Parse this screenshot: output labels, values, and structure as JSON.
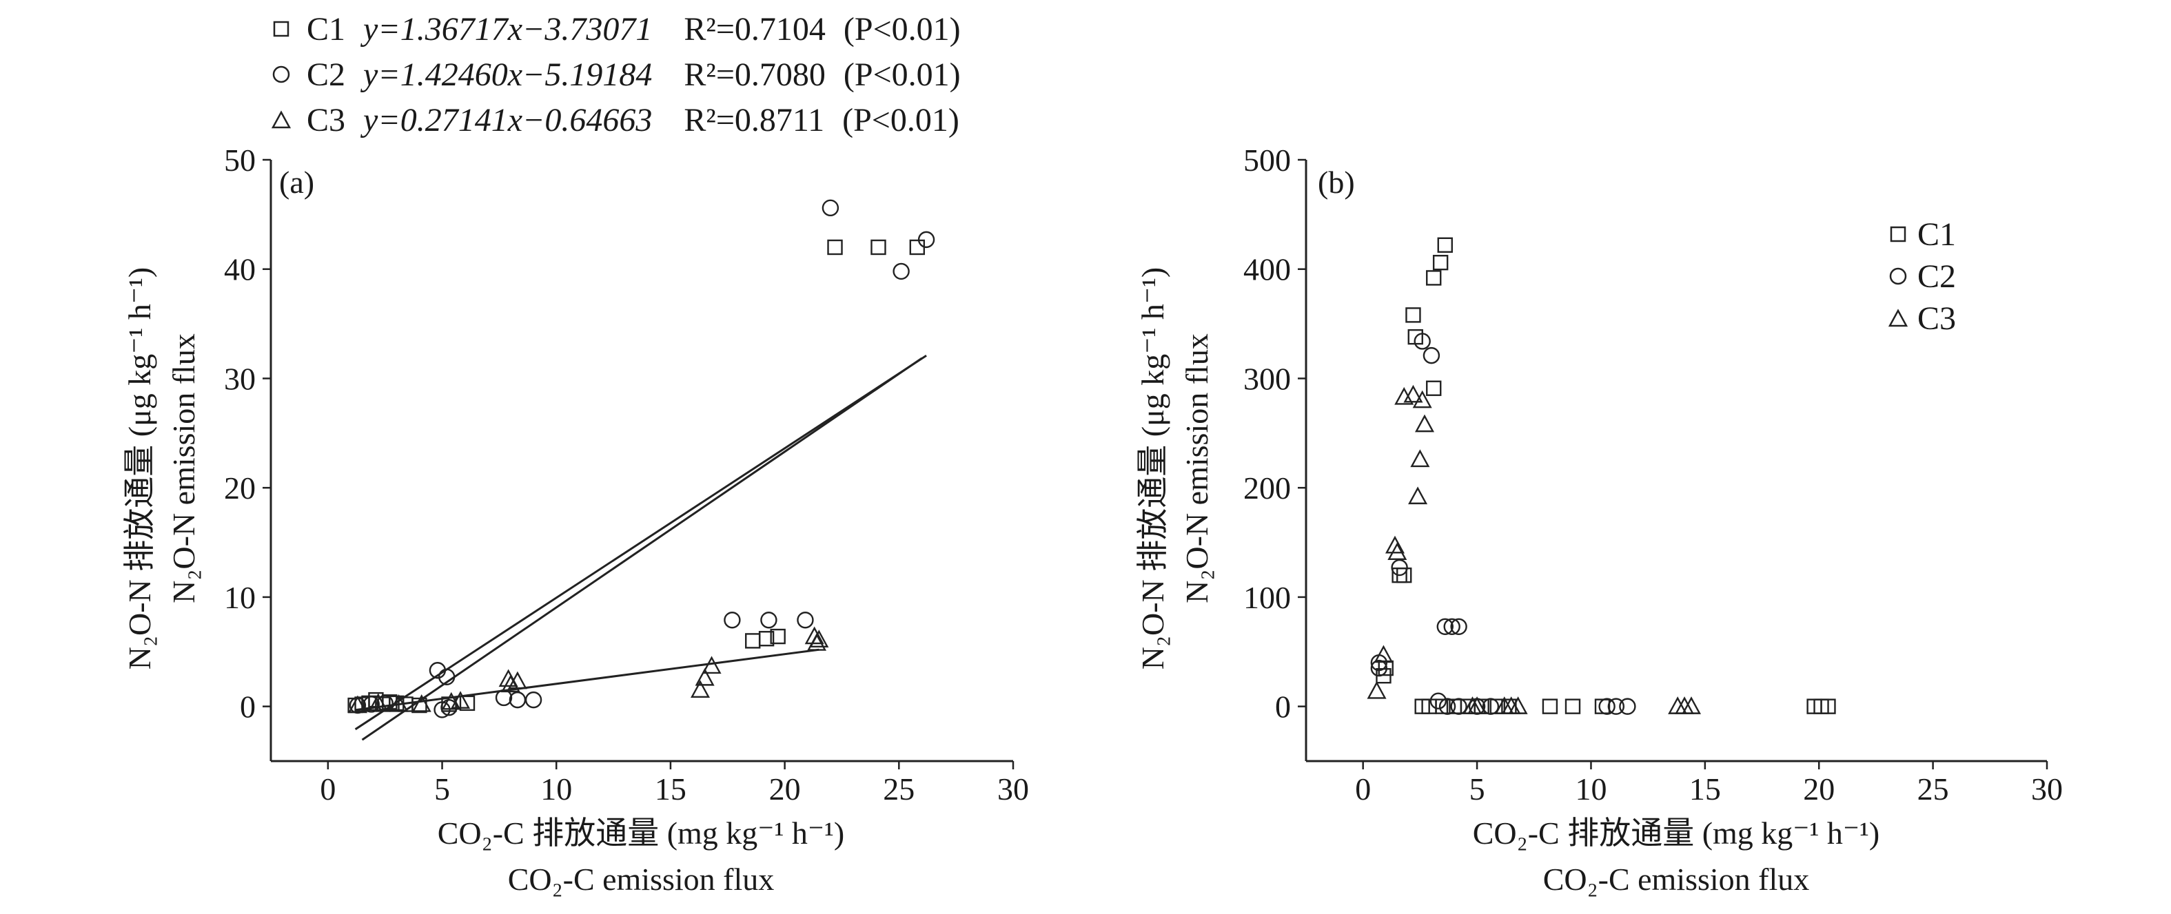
{
  "chart_data": [
    {
      "type": "scatter",
      "panel_label": "(a)",
      "xlabel": "CO₂-C 排放通量 (mg kg⁻¹ h⁻¹)",
      "xlabel2": "CO₂-C emission flux",
      "ylabel": "N₂O-N 排放通量 (μg kg⁻¹ h⁻¹)",
      "ylabel2": "N₂O-N emission flux",
      "xlim": [
        -2.5,
        30
      ],
      "ylim": [
        -5,
        50
      ],
      "xticks": [
        "0",
        "5",
        "10",
        "15",
        "20",
        "25",
        "30"
      ],
      "yticks": [
        "0",
        "10",
        "20",
        "30",
        "40",
        "50"
      ],
      "legend_position": "top-left-outside",
      "legend": [
        {
          "name": "C1",
          "marker": "square",
          "equation": "y=1.36717x−3.73071",
          "r2": "R²=0.7104",
          "p": "(P<0.01)"
        },
        {
          "name": "C2",
          "marker": "circle",
          "equation": "y=1.42460x−5.19184",
          "r2": "R²=0.7080",
          "p": "(P<0.01)"
        },
        {
          "name": "C3",
          "marker": "triangle",
          "equation": "y=0.27141x−0.64663",
          "r2": "R²=0.8711",
          "p": "(P<0.01)"
        }
      ],
      "fit_lines": [
        {
          "series": "C1",
          "slope": 1.36717,
          "intercept": -3.73071,
          "x_range": [
            1.2,
            26.2
          ]
        },
        {
          "series": "C2",
          "slope": 1.4246,
          "intercept": -5.19184,
          "x_range": [
            1.5,
            26.0
          ]
        },
        {
          "series": "C3",
          "slope": 0.27141,
          "intercept": -0.64663,
          "x_range": [
            1.2,
            21.5
          ]
        }
      ],
      "series": [
        {
          "name": "C1",
          "marker": "square",
          "points": [
            [
              1.2,
              0.1
            ],
            [
              1.5,
              0.2
            ],
            [
              1.8,
              0.3
            ],
            [
              2.1,
              0.6
            ],
            [
              2.4,
              0.2
            ],
            [
              2.7,
              0.4
            ],
            [
              3.0,
              0.3
            ],
            [
              3.4,
              0.2
            ],
            [
              4.0,
              0.1
            ],
            [
              5.3,
              0.2
            ],
            [
              6.1,
              0.3
            ],
            [
              18.6,
              6.0
            ],
            [
              19.2,
              6.2
            ],
            [
              19.7,
              6.4
            ],
            [
              22.2,
              42.0
            ],
            [
              24.1,
              42.0
            ],
            [
              25.8,
              42.0
            ]
          ]
        },
        {
          "name": "C2",
          "marker": "circle",
          "points": [
            [
              1.3,
              0.1
            ],
            [
              1.9,
              0.2
            ],
            [
              2.5,
              0.3
            ],
            [
              4.8,
              3.3
            ],
            [
              5.2,
              2.7
            ],
            [
              5.0,
              -0.3
            ],
            [
              5.3,
              -0.1
            ],
            [
              7.7,
              0.8
            ],
            [
              8.3,
              0.6
            ],
            [
              9.0,
              0.6
            ],
            [
              17.7,
              7.9
            ],
            [
              19.3,
              7.9
            ],
            [
              20.9,
              7.9
            ],
            [
              22.0,
              45.6
            ],
            [
              25.1,
              39.8
            ],
            [
              26.2,
              42.7
            ]
          ]
        },
        {
          "name": "C3",
          "marker": "triangle",
          "points": [
            [
              1.3,
              0.1
            ],
            [
              2.2,
              0.3
            ],
            [
              3.1,
              0.2
            ],
            [
              4.1,
              0.2
            ],
            [
              5.4,
              0.4
            ],
            [
              5.8,
              0.5
            ],
            [
              7.9,
              2.5
            ],
            [
              8.3,
              2.3
            ],
            [
              8.0,
              2.0
            ],
            [
              16.3,
              1.5
            ],
            [
              16.5,
              2.6
            ],
            [
              16.8,
              3.7
            ],
            [
              21.3,
              6.4
            ],
            [
              21.4,
              5.8
            ],
            [
              21.5,
              6.1
            ]
          ]
        }
      ]
    },
    {
      "type": "scatter",
      "panel_label": "(b)",
      "xlabel": "CO₂-C 排放通量 (mg kg⁻¹ h⁻¹)",
      "xlabel2": "CO₂-C emission flux",
      "ylabel": "N₂O-N 排放通量 (μg kg⁻¹ h⁻¹)",
      "ylabel2": "N₂O-N emission flux",
      "xlim": [
        -2.5,
        30
      ],
      "ylim": [
        -50,
        500
      ],
      "xticks": [
        "0",
        "5",
        "10",
        "15",
        "20",
        "25",
        "30"
      ],
      "yticks": [
        "0",
        "100",
        "200",
        "300",
        "400",
        "500"
      ],
      "legend_position": "top-right",
      "legend": [
        {
          "name": "C1",
          "marker": "square"
        },
        {
          "name": "C2",
          "marker": "circle"
        },
        {
          "name": "C3",
          "marker": "triangle"
        }
      ],
      "series": [
        {
          "name": "C1",
          "marker": "square",
          "points": [
            [
              0.9,
              28
            ],
            [
              1.0,
              35
            ],
            [
              1.6,
              120
            ],
            [
              1.8,
              120
            ],
            [
              2.2,
              358
            ],
            [
              2.3,
              338
            ],
            [
              2.6,
              0
            ],
            [
              2.9,
              0
            ],
            [
              3.1,
              291
            ],
            [
              3.1,
              392
            ],
            [
              3.4,
              406
            ],
            [
              3.6,
              422
            ],
            [
              3.5,
              0
            ],
            [
              4.0,
              0
            ],
            [
              4.6,
              0
            ],
            [
              5.2,
              0
            ],
            [
              5.9,
              0
            ],
            [
              6.4,
              0
            ],
            [
              8.2,
              0
            ],
            [
              9.2,
              0
            ],
            [
              10.5,
              0
            ],
            [
              19.8,
              0
            ],
            [
              20.1,
              0
            ],
            [
              20.4,
              0
            ]
          ]
        },
        {
          "name": "C2",
          "marker": "circle",
          "points": [
            [
              0.7,
              40
            ],
            [
              0.7,
              35
            ],
            [
              1.6,
              127
            ],
            [
              2.6,
              334
            ],
            [
              3.0,
              321
            ],
            [
              3.3,
              5
            ],
            [
              3.6,
              73
            ],
            [
              3.9,
              73
            ],
            [
              4.2,
              73
            ],
            [
              3.7,
              0
            ],
            [
              4.2,
              0
            ],
            [
              5.0,
              0
            ],
            [
              5.6,
              0
            ],
            [
              10.7,
              0
            ],
            [
              11.1,
              0
            ],
            [
              11.6,
              0
            ]
          ]
        },
        {
          "name": "C3",
          "marker": "triangle",
          "points": [
            [
              0.6,
              14
            ],
            [
              0.9,
              47
            ],
            [
              1.4,
              147
            ],
            [
              1.5,
              141
            ],
            [
              1.8,
              283
            ],
            [
              2.2,
              285
            ],
            [
              2.4,
              192
            ],
            [
              2.5,
              226
            ],
            [
              2.6,
              280
            ],
            [
              2.7,
              258
            ],
            [
              4.8,
              0
            ],
            [
              5.0,
              0
            ],
            [
              6.2,
              0
            ],
            [
              6.5,
              0
            ],
            [
              6.8,
              0
            ],
            [
              13.8,
              0
            ],
            [
              14.1,
              0
            ],
            [
              14.4,
              0
            ]
          ]
        }
      ]
    }
  ]
}
